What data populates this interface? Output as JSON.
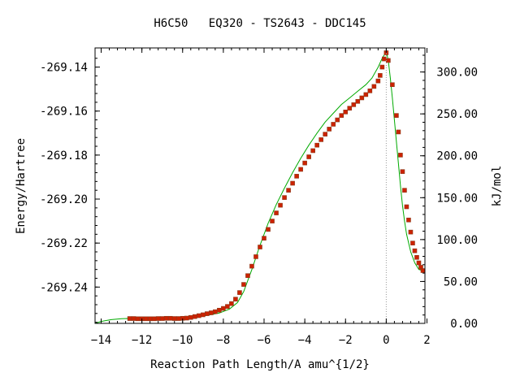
{
  "chart_data": {
    "type": "line",
    "title": "H6C50   EQ320 - TS2643 - DDC145",
    "xlabel": "Reaction Path Length/A amu^{1/2}",
    "ylabel": "Energy/Hartree",
    "y2label": "kJ/mol",
    "xlim": [
      -14.3,
      1.9
    ],
    "ylim": [
      -269.2565,
      -269.1313
    ],
    "y2lim": [
      0.0,
      328.7
    ],
    "grid": false,
    "legend": "none",
    "x_ticks": [
      "-14",
      "-12",
      "-10",
      "-8",
      "-6",
      "-4",
      "-2",
      "0",
      "2"
    ],
    "y_ticks": [
      "-269.14",
      "-269.16",
      "-269.18",
      "-269.20",
      "-269.22",
      "-269.24"
    ],
    "y2_ticks": [
      "0.00",
      "50.00",
      "100.00",
      "150.00",
      "200.00",
      "250.00",
      "300.00"
    ],
    "ts_marker_x": 0,
    "colors": {
      "curve": "#00aa00",
      "points": "#cc2200",
      "point_edge": "#8b3a1a",
      "axis": "#000000",
      "ts_line": "#999999"
    },
    "series": [
      {
        "kind": "smooth-curve",
        "x": [
          -14.3,
          -14.0,
          -13.5,
          -13.0,
          -12.7,
          -12.0,
          -11.0,
          -10.0,
          -9.0,
          -8.2,
          -7.7,
          -7.3,
          -7.0,
          -6.6,
          -6.2,
          -5.8,
          -5.4,
          -5.0,
          -4.6,
          -4.2,
          -3.8,
          -3.4,
          -3.0,
          -2.6,
          -2.2,
          -1.8,
          -1.4,
          -1.0,
          -0.7,
          -0.4,
          -0.2,
          0.0,
          0.1,
          0.2,
          0.3,
          0.4,
          0.5,
          0.6,
          0.7,
          0.8,
          0.9,
          1.0,
          1.2,
          1.4,
          1.6,
          1.8
        ],
        "y": [
          -269.2565,
          -269.2556,
          -269.2548,
          -269.2544,
          -269.2543,
          -269.2544,
          -269.2543,
          -269.2541,
          -269.2532,
          -269.2518,
          -269.25,
          -269.247,
          -269.242,
          -269.232,
          -269.221,
          -269.211,
          -269.2025,
          -269.195,
          -269.188,
          -269.1815,
          -269.1755,
          -269.17,
          -269.165,
          -269.161,
          -269.157,
          -269.154,
          -269.151,
          -269.148,
          -269.145,
          -269.14,
          -269.136,
          -269.133,
          -269.137,
          -269.145,
          -269.154,
          -269.164,
          -269.174,
          -269.184,
          -269.194,
          -269.203,
          -269.21,
          -269.216,
          -269.224,
          -269.229,
          -269.232,
          -269.2325
        ]
      },
      {
        "kind": "points",
        "x": [
          -12.6,
          -12.4,
          -12.2,
          -12.0,
          -11.8,
          -11.6,
          -11.4,
          -11.2,
          -11.0,
          -10.8,
          -10.6,
          -10.4,
          -10.2,
          -10.0,
          -9.8,
          -9.6,
          -9.4,
          -9.2,
          -9.0,
          -8.8,
          -8.6,
          -8.4,
          -8.2,
          -8.0,
          -7.8,
          -7.6,
          -7.4,
          -7.2,
          -7.0,
          -6.8,
          -6.6,
          -6.4,
          -6.2,
          -6.0,
          -5.8,
          -5.6,
          -5.4,
          -5.2,
          -5.0,
          -4.8,
          -4.6,
          -4.4,
          -4.2,
          -4.0,
          -3.8,
          -3.6,
          -3.4,
          -3.2,
          -3.0,
          -2.8,
          -2.6,
          -2.4,
          -2.2,
          -2.0,
          -1.8,
          -1.6,
          -1.4,
          -1.2,
          -1.0,
          -0.8,
          -0.6,
          -0.4,
          -0.3,
          -0.2,
          -0.1,
          0.0,
          0.1,
          0.3,
          0.5,
          0.6,
          0.7,
          0.8,
          0.9,
          1.0,
          1.1,
          1.2,
          1.3,
          1.4,
          1.5,
          1.6,
          1.7,
          1.8
        ],
        "y": [
          -269.2543,
          -269.2543,
          -269.2544,
          -269.2544,
          -269.2544,
          -269.2544,
          -269.2544,
          -269.2543,
          -269.2543,
          -269.2542,
          -269.2542,
          -269.2543,
          -269.2543,
          -269.2542,
          -269.2541,
          -269.2538,
          -269.2534,
          -269.253,
          -269.2526,
          -269.2521,
          -269.2517,
          -269.2512,
          -269.2505,
          -269.2497,
          -269.2488,
          -269.2475,
          -269.2455,
          -269.2425,
          -269.2388,
          -269.2348,
          -269.2305,
          -269.2262,
          -269.2218,
          -269.2178,
          -269.2138,
          -269.21,
          -269.2063,
          -269.2028,
          -269.1993,
          -269.196,
          -269.1928,
          -269.1896,
          -269.1865,
          -269.1836,
          -269.1808,
          -269.178,
          -269.1755,
          -269.173,
          -269.1705,
          -269.1682,
          -269.166,
          -269.164,
          -269.162,
          -269.1604,
          -269.1587,
          -269.1571,
          -269.1556,
          -269.154,
          -269.1525,
          -269.1508,
          -269.1488,
          -269.1463,
          -269.1438,
          -269.14,
          -269.1363,
          -269.1335,
          -269.137,
          -269.148,
          -269.162,
          -269.1695,
          -269.18,
          -269.1875,
          -269.196,
          -269.2035,
          -269.2095,
          -269.215,
          -269.22,
          -269.2235,
          -269.2265,
          -269.229,
          -269.231,
          -269.2325
        ]
      }
    ]
  }
}
